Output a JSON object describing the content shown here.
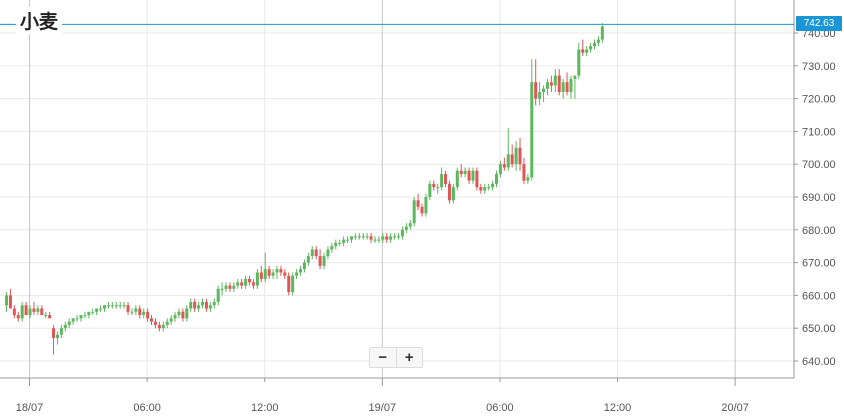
{
  "title": "小麦",
  "current_price": "742.63",
  "zoom": {
    "minus": "−",
    "plus": "+"
  },
  "colors": {
    "up": "#5cb85c",
    "down": "#e05555",
    "accent": "#1a96d6",
    "grid": "#e8e8e8"
  },
  "chart_data": {
    "type": "candlestick",
    "title": "小麦",
    "ylim": [
      636,
      746
    ],
    "y_ticks": [
      "640.00",
      "650.00",
      "660.00",
      "670.00",
      "680.00",
      "690.00",
      "700.00",
      "710.00",
      "720.00",
      "730.00",
      "740.00"
    ],
    "x_ticks": [
      {
        "label": "18/07",
        "pos": 6,
        "major": true
      },
      {
        "label": "06:00",
        "pos": 36,
        "major": false
      },
      {
        "label": "12:00",
        "pos": 66,
        "major": false
      },
      {
        "label": "19/07",
        "pos": 96,
        "major": true
      },
      {
        "label": "06:00",
        "pos": 126,
        "major": false
      },
      {
        "label": "12:00",
        "pos": 156,
        "major": false
      },
      {
        "label": "20/07",
        "pos": 186,
        "major": true
      }
    ],
    "current_price": 742.63,
    "grid": true,
    "candles": [
      {
        "o": 657,
        "h": 661,
        "l": 655,
        "c": 660
      },
      {
        "o": 660,
        "h": 662,
        "l": 656,
        "c": 656
      },
      {
        "o": 656,
        "h": 657,
        "l": 653,
        "c": 654
      },
      {
        "o": 654,
        "h": 655,
        "l": 652,
        "c": 653
      },
      {
        "o": 653,
        "h": 658,
        "l": 652,
        "c": 657
      },
      {
        "o": 657,
        "h": 658,
        "l": 654,
        "c": 654
      },
      {
        "o": 654,
        "h": 657,
        "l": 653,
        "c": 656
      },
      {
        "o": 656,
        "h": 658,
        "l": 654,
        "c": 655
      },
      {
        "o": 655,
        "h": 657,
        "l": 654,
        "c": 656
      },
      {
        "o": 656,
        "h": 657,
        "l": 654,
        "c": 654
      },
      {
        "o": 654,
        "h": 655,
        "l": 653,
        "c": 654
      },
      {
        "o": 654,
        "h": 655,
        "l": 653,
        "c": 653
      },
      {
        "o": 650,
        "h": 651,
        "l": 642,
        "c": 647
      },
      {
        "o": 647,
        "h": 649,
        "l": 645,
        "c": 648
      },
      {
        "o": 648,
        "h": 651,
        "l": 647,
        "c": 650
      },
      {
        "o": 650,
        "h": 652,
        "l": 649,
        "c": 651
      },
      {
        "o": 651,
        "h": 653,
        "l": 650,
        "c": 652
      },
      {
        "o": 652,
        "h": 653,
        "l": 651,
        "c": 653
      },
      {
        "o": 653,
        "h": 654,
        "l": 652,
        "c": 653
      },
      {
        "o": 653,
        "h": 654,
        "l": 652,
        "c": 654
      },
      {
        "o": 654,
        "h": 655,
        "l": 653,
        "c": 654
      },
      {
        "o": 654,
        "h": 655,
        "l": 653,
        "c": 655
      },
      {
        "o": 655,
        "h": 656,
        "l": 654,
        "c": 655
      },
      {
        "o": 655,
        "h": 656,
        "l": 654,
        "c": 656
      },
      {
        "o": 656,
        "h": 657,
        "l": 655,
        "c": 656
      },
      {
        "o": 656,
        "h": 657,
        "l": 655,
        "c": 657
      },
      {
        "o": 657,
        "h": 658,
        "l": 656,
        "c": 657
      },
      {
        "o": 657,
        "h": 658,
        "l": 656,
        "c": 657
      },
      {
        "o": 657,
        "h": 658,
        "l": 656,
        "c": 657
      },
      {
        "o": 657,
        "h": 658,
        "l": 656,
        "c": 657
      },
      {
        "o": 657,
        "h": 658,
        "l": 656,
        "c": 657
      },
      {
        "o": 657,
        "h": 658,
        "l": 654,
        "c": 655
      },
      {
        "o": 655,
        "h": 656,
        "l": 654,
        "c": 655
      },
      {
        "o": 655,
        "h": 657,
        "l": 654,
        "c": 656
      },
      {
        "o": 656,
        "h": 657,
        "l": 653,
        "c": 654
      },
      {
        "o": 654,
        "h": 656,
        "l": 653,
        "c": 655
      },
      {
        "o": 655,
        "h": 656,
        "l": 652,
        "c": 653
      },
      {
        "o": 653,
        "h": 654,
        "l": 651,
        "c": 652
      },
      {
        "o": 652,
        "h": 653,
        "l": 650,
        "c": 651
      },
      {
        "o": 651,
        "h": 652,
        "l": 649,
        "c": 650
      },
      {
        "o": 650,
        "h": 652,
        "l": 649,
        "c": 651
      },
      {
        "o": 651,
        "h": 653,
        "l": 650,
        "c": 652
      },
      {
        "o": 652,
        "h": 654,
        "l": 651,
        "c": 653
      },
      {
        "o": 653,
        "h": 655,
        "l": 652,
        "c": 654
      },
      {
        "o": 654,
        "h": 656,
        "l": 653,
        "c": 655
      },
      {
        "o": 655,
        "h": 656,
        "l": 652,
        "c": 653
      },
      {
        "o": 653,
        "h": 657,
        "l": 652,
        "c": 656
      },
      {
        "o": 656,
        "h": 659,
        "l": 655,
        "c": 658
      },
      {
        "o": 658,
        "h": 659,
        "l": 655,
        "c": 656
      },
      {
        "o": 656,
        "h": 658,
        "l": 655,
        "c": 657
      },
      {
        "o": 657,
        "h": 659,
        "l": 656,
        "c": 658
      },
      {
        "o": 658,
        "h": 659,
        "l": 655,
        "c": 656
      },
      {
        "o": 656,
        "h": 658,
        "l": 655,
        "c": 657
      },
      {
        "o": 657,
        "h": 659,
        "l": 656,
        "c": 658
      },
      {
        "o": 658,
        "h": 663,
        "l": 657,
        "c": 662
      },
      {
        "o": 662,
        "h": 664,
        "l": 660,
        "c": 662
      },
      {
        "o": 662,
        "h": 664,
        "l": 661,
        "c": 663
      },
      {
        "o": 663,
        "h": 664,
        "l": 661,
        "c": 662
      },
      {
        "o": 662,
        "h": 664,
        "l": 661,
        "c": 663
      },
      {
        "o": 663,
        "h": 665,
        "l": 662,
        "c": 664
      },
      {
        "o": 664,
        "h": 665,
        "l": 662,
        "c": 663
      },
      {
        "o": 663,
        "h": 666,
        "l": 662,
        "c": 665
      },
      {
        "o": 665,
        "h": 666,
        "l": 663,
        "c": 664
      },
      {
        "o": 664,
        "h": 665,
        "l": 662,
        "c": 663
      },
      {
        "o": 663,
        "h": 668,
        "l": 662,
        "c": 667
      },
      {
        "o": 667,
        "h": 669,
        "l": 664,
        "c": 665
      },
      {
        "o": 665,
        "h": 673,
        "l": 664,
        "c": 668
      },
      {
        "o": 668,
        "h": 669,
        "l": 665,
        "c": 666
      },
      {
        "o": 666,
        "h": 668,
        "l": 665,
        "c": 667
      },
      {
        "o": 667,
        "h": 669,
        "l": 665,
        "c": 668
      },
      {
        "o": 668,
        "h": 669,
        "l": 666,
        "c": 667
      },
      {
        "o": 667,
        "h": 668,
        "l": 665,
        "c": 666
      },
      {
        "o": 666,
        "h": 667,
        "l": 660,
        "c": 661
      },
      {
        "o": 661,
        "h": 667,
        "l": 660,
        "c": 666
      },
      {
        "o": 666,
        "h": 668,
        "l": 665,
        "c": 667
      },
      {
        "o": 667,
        "h": 669,
        "l": 666,
        "c": 668
      },
      {
        "o": 668,
        "h": 671,
        "l": 667,
        "c": 670
      },
      {
        "o": 670,
        "h": 673,
        "l": 669,
        "c": 672
      },
      {
        "o": 672,
        "h": 675,
        "l": 671,
        "c": 674
      },
      {
        "o": 674,
        "h": 675,
        "l": 671,
        "c": 672
      },
      {
        "o": 672,
        "h": 674,
        "l": 668,
        "c": 669
      },
      {
        "o": 669,
        "h": 673,
        "l": 668,
        "c": 672
      },
      {
        "o": 672,
        "h": 675,
        "l": 671,
        "c": 674
      },
      {
        "o": 674,
        "h": 676,
        "l": 673,
        "c": 675
      },
      {
        "o": 675,
        "h": 677,
        "l": 674,
        "c": 676
      },
      {
        "o": 676,
        "h": 677,
        "l": 675,
        "c": 676
      },
      {
        "o": 676,
        "h": 678,
        "l": 675,
        "c": 677
      },
      {
        "o": 677,
        "h": 678,
        "l": 676,
        "c": 677
      },
      {
        "o": 677,
        "h": 678,
        "l": 676,
        "c": 678
      },
      {
        "o": 678,
        "h": 679,
        "l": 677,
        "c": 678
      },
      {
        "o": 678,
        "h": 679,
        "l": 677,
        "c": 678
      },
      {
        "o": 678,
        "h": 679,
        "l": 677,
        "c": 678
      },
      {
        "o": 678,
        "h": 679,
        "l": 677,
        "c": 678
      },
      {
        "o": 678,
        "h": 679,
        "l": 676,
        "c": 677
      },
      {
        "o": 677,
        "h": 678,
        "l": 676,
        "c": 677
      },
      {
        "o": 677,
        "h": 678,
        "l": 676,
        "c": 677
      },
      {
        "o": 677,
        "h": 679,
        "l": 676,
        "c": 678
      },
      {
        "o": 678,
        "h": 679,
        "l": 676,
        "c": 677
      },
      {
        "o": 677,
        "h": 679,
        "l": 676,
        "c": 678
      },
      {
        "o": 678,
        "h": 679,
        "l": 677,
        "c": 678
      },
      {
        "o": 678,
        "h": 679,
        "l": 677,
        "c": 678
      },
      {
        "o": 678,
        "h": 681,
        "l": 677,
        "c": 680
      },
      {
        "o": 680,
        "h": 682,
        "l": 679,
        "c": 681
      },
      {
        "o": 681,
        "h": 683,
        "l": 680,
        "c": 682
      },
      {
        "o": 682,
        "h": 690,
        "l": 681,
        "c": 689
      },
      {
        "o": 689,
        "h": 691,
        "l": 686,
        "c": 687
      },
      {
        "o": 687,
        "h": 688,
        "l": 684,
        "c": 685
      },
      {
        "o": 685,
        "h": 691,
        "l": 684,
        "c": 690
      },
      {
        "o": 690,
        "h": 695,
        "l": 689,
        "c": 694
      },
      {
        "o": 694,
        "h": 695,
        "l": 692,
        "c": 693
      },
      {
        "o": 693,
        "h": 694,
        "l": 691,
        "c": 693
      },
      {
        "o": 693,
        "h": 699,
        "l": 692,
        "c": 697
      },
      {
        "o": 697,
        "h": 698,
        "l": 693,
        "c": 694
      },
      {
        "o": 694,
        "h": 695,
        "l": 688,
        "c": 689
      },
      {
        "o": 689,
        "h": 694,
        "l": 688,
        "c": 693
      },
      {
        "o": 693,
        "h": 699,
        "l": 692,
        "c": 698
      },
      {
        "o": 698,
        "h": 700,
        "l": 696,
        "c": 697
      },
      {
        "o": 697,
        "h": 699,
        "l": 696,
        "c": 698
      },
      {
        "o": 698,
        "h": 699,
        "l": 694,
        "c": 695
      },
      {
        "o": 695,
        "h": 699,
        "l": 694,
        "c": 698
      },
      {
        "o": 698,
        "h": 699,
        "l": 692,
        "c": 693
      },
      {
        "o": 693,
        "h": 694,
        "l": 691,
        "c": 692
      },
      {
        "o": 692,
        "h": 694,
        "l": 691,
        "c": 693
      },
      {
        "o": 693,
        "h": 694,
        "l": 692,
        "c": 693
      },
      {
        "o": 693,
        "h": 695,
        "l": 692,
        "c": 694
      },
      {
        "o": 694,
        "h": 698,
        "l": 693,
        "c": 697
      },
      {
        "o": 697,
        "h": 701,
        "l": 696,
        "c": 700
      },
      {
        "o": 700,
        "h": 702,
        "l": 698,
        "c": 699
      },
      {
        "o": 699,
        "h": 711,
        "l": 698,
        "c": 703
      },
      {
        "o": 703,
        "h": 706,
        "l": 699,
        "c": 700
      },
      {
        "o": 700,
        "h": 707,
        "l": 698,
        "c": 705
      },
      {
        "o": 705,
        "h": 708,
        "l": 698,
        "c": 700
      },
      {
        "o": 700,
        "h": 702,
        "l": 694,
        "c": 695
      },
      {
        "o": 695,
        "h": 697,
        "l": 694,
        "c": 696
      },
      {
        "o": 696,
        "h": 732,
        "l": 695,
        "c": 725
      },
      {
        "o": 725,
        "h": 732,
        "l": 718,
        "c": 720
      },
      {
        "o": 720,
        "h": 725,
        "l": 718,
        "c": 722
      },
      {
        "o": 722,
        "h": 724,
        "l": 719,
        "c": 723
      },
      {
        "o": 723,
        "h": 726,
        "l": 721,
        "c": 725
      },
      {
        "o": 725,
        "h": 727,
        "l": 722,
        "c": 724
      },
      {
        "o": 724,
        "h": 729,
        "l": 722,
        "c": 727
      },
      {
        "o": 727,
        "h": 729,
        "l": 721,
        "c": 722
      },
      {
        "o": 722,
        "h": 726,
        "l": 720,
        "c": 725
      },
      {
        "o": 725,
        "h": 728,
        "l": 721,
        "c": 722
      },
      {
        "o": 722,
        "h": 727,
        "l": 720,
        "c": 726
      },
      {
        "o": 726,
        "h": 727,
        "l": 720,
        "c": 727
      },
      {
        "o": 727,
        "h": 737,
        "l": 726,
        "c": 735
      },
      {
        "o": 735,
        "h": 738,
        "l": 733,
        "c": 734
      },
      {
        "o": 734,
        "h": 736,
        "l": 733,
        "c": 735
      },
      {
        "o": 735,
        "h": 737,
        "l": 734,
        "c": 736
      },
      {
        "o": 736,
        "h": 738,
        "l": 735,
        "c": 737
      },
      {
        "o": 737,
        "h": 739,
        "l": 736,
        "c": 738
      },
      {
        "o": 738,
        "h": 743,
        "l": 737,
        "c": 742
      }
    ]
  }
}
